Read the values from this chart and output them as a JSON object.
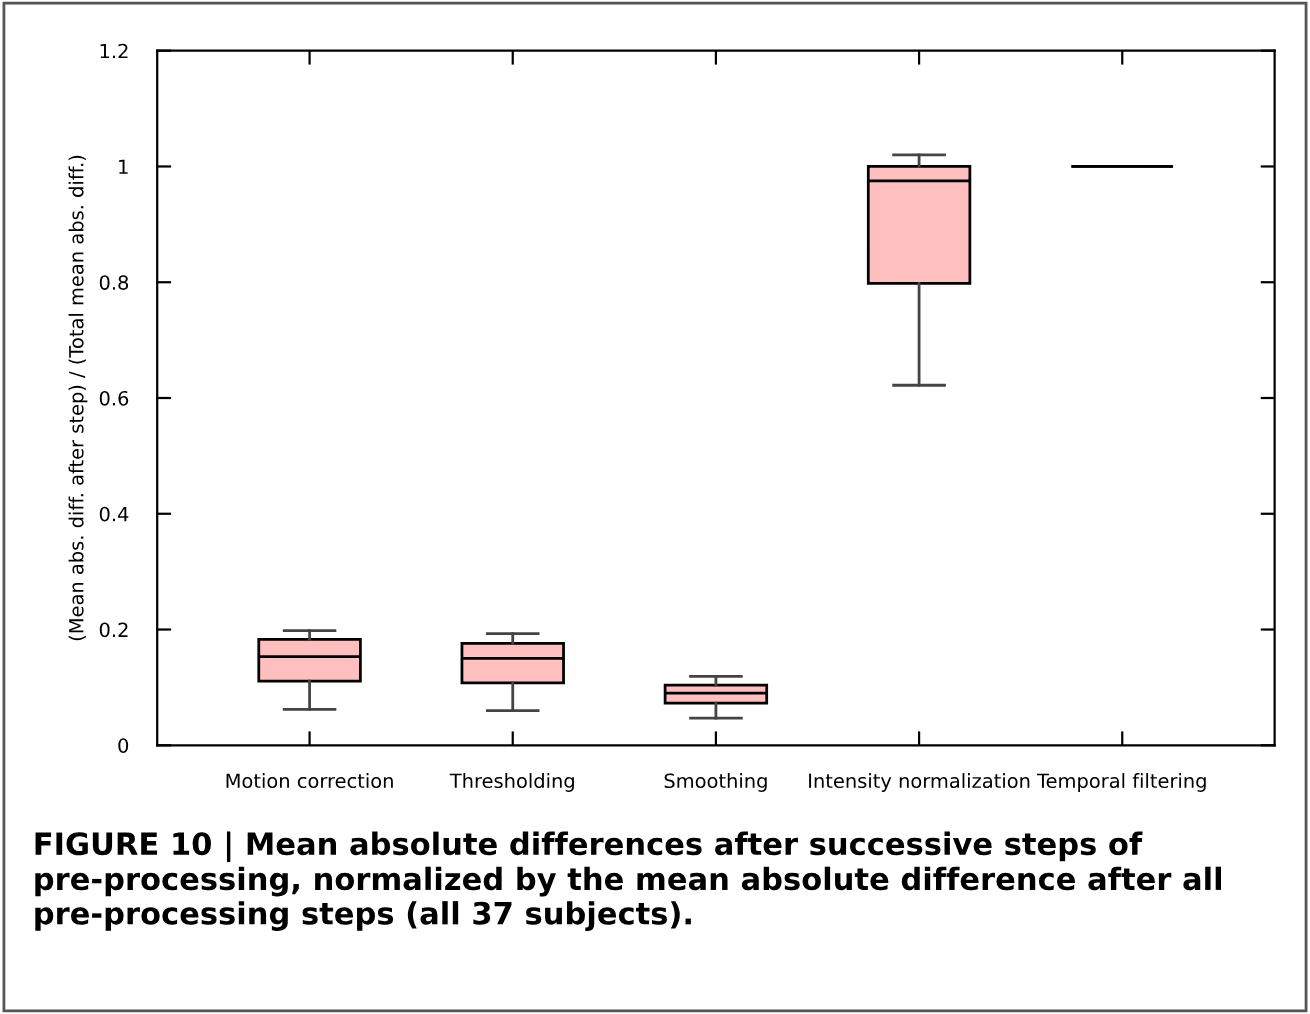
{
  "chart_data": {
    "type": "box",
    "ylabel": "(Mean abs. diff. after step) / (Total mean abs. diff.)",
    "categories": [
      "Motion correction",
      "Thresholding",
      "Smoothing",
      "Intensity normalization",
      "Temporal filtering"
    ],
    "series": [
      {
        "colors": [
          "#ffbfbf",
          "#ffbfbf",
          "#ffbfbf",
          "#ffbfbf",
          "#000000"
        ],
        "boxes": [
          {
            "low": 0.062,
            "q1": 0.111,
            "median": 0.153,
            "q3": 0.183,
            "high": 0.198
          },
          {
            "low": 0.06,
            "q1": 0.108,
            "median": 0.15,
            "q3": 0.176,
            "high": 0.193
          },
          {
            "low": 0.047,
            "q1": 0.073,
            "median": 0.09,
            "q3": 0.104,
            "high": 0.119
          },
          {
            "low": 0.622,
            "q1": 0.798,
            "median": 0.975,
            "q3": 1.0,
            "high": 1.02
          },
          {
            "low": 1.0,
            "q1": 1.0,
            "median": 1.0,
            "q3": 1.0,
            "high": 1.0
          }
        ]
      }
    ],
    "ylim": [
      0,
      1.2
    ],
    "yticks": [
      0,
      0.2,
      0.4,
      0.6,
      0.8,
      1,
      1.2
    ],
    "grid": false,
    "legend": false,
    "annotations": [
      "FIGURE 10 | Mean absolute differences after successive steps of pre-processing, normalized by the mean absolute difference after all pre-processing steps (all 37 subjects)."
    ]
  }
}
